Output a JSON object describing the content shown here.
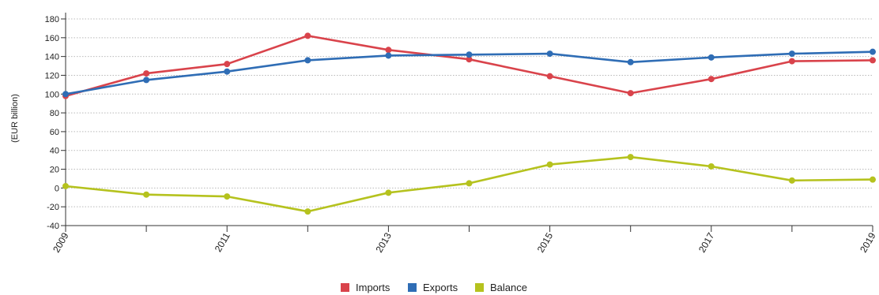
{
  "chart_data": {
    "type": "line",
    "title": "",
    "ylabel": "(EUR billion)",
    "xlabel": "",
    "x": [
      2009,
      2010,
      2011,
      2012,
      2013,
      2014,
      2015,
      2016,
      2017,
      2018,
      2019
    ],
    "x_tick_labels": [
      "2009",
      "2011",
      "2013",
      "2015",
      "2017",
      "2019"
    ],
    "ylim": [
      -40,
      180
    ],
    "yticks": [
      -40,
      -20,
      0,
      20,
      40,
      60,
      80,
      100,
      120,
      140,
      160,
      180
    ],
    "grid": "horizontal-dotted",
    "legend_position": "bottom-center",
    "series": [
      {
        "name": "Imports",
        "color": "#d9434b",
        "values": [
          98,
          122,
          132,
          162,
          147,
          137,
          119,
          101,
          116,
          135,
          136
        ]
      },
      {
        "name": "Exports",
        "color": "#2f6db5",
        "values": [
          100,
          115,
          124,
          136,
          141,
          142,
          143,
          134,
          139,
          143,
          145
        ]
      },
      {
        "name": "Balance",
        "color": "#b5c21e",
        "values": [
          2,
          -7,
          -9,
          -25,
          -5,
          5,
          25,
          33,
          23,
          8,
          9
        ]
      }
    ]
  }
}
